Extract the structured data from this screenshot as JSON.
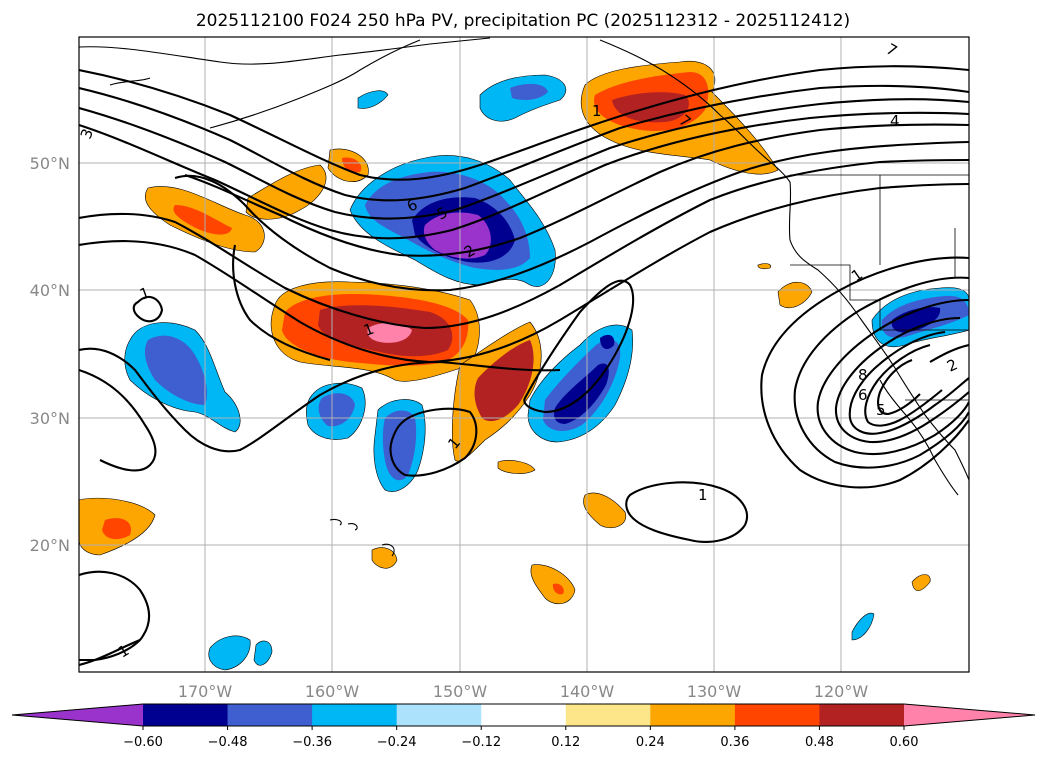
{
  "map": {
    "title": "2025112100 F024 250 hPa PV, precipitation PC (2025112312 - 2025112412)",
    "lon_labels": [
      "170°W",
      "160°W",
      "150°W",
      "140°W",
      "130°W",
      "120°W"
    ],
    "lat_labels": [
      "50°N",
      "40°N",
      "30°N",
      "20°N"
    ],
    "contour_labels": [
      "3",
      "7",
      "4",
      "1",
      "6",
      "5",
      "2",
      "1",
      "1",
      "1",
      "1",
      "1",
      "2",
      "8",
      "6",
      "5",
      "1",
      "7"
    ]
  },
  "colorbar": {
    "levels": [
      "−0.60",
      "−0.48",
      "−0.36",
      "−0.24",
      "−0.12",
      "0.12",
      "0.24",
      "0.36",
      "0.48",
      "0.60"
    ],
    "colors": [
      "#9933cc",
      "#000090",
      "#3f5fd0",
      "#00b7f5",
      "#ace2fb",
      "#ffffff",
      "#fde68a",
      "#fda500",
      "#ff4500",
      "#b22222",
      "#ff82ab"
    ]
  }
}
